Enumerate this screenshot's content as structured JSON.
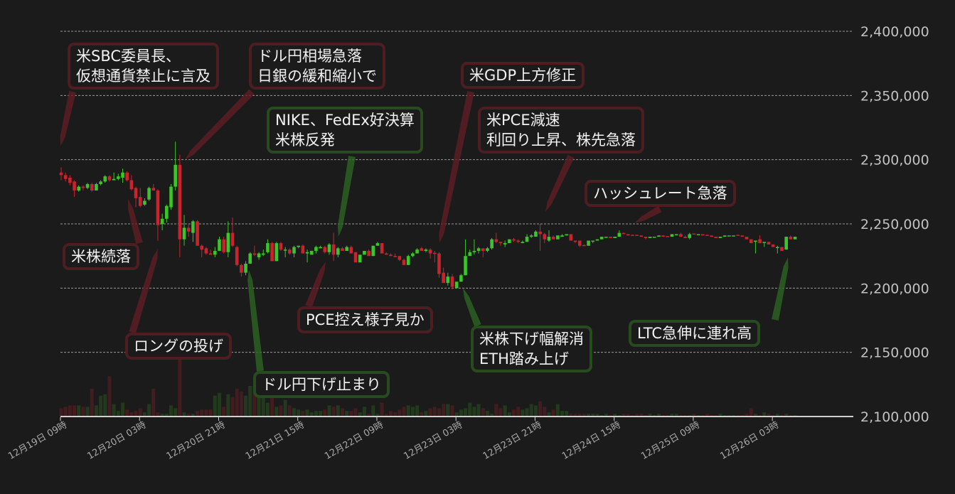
{
  "chart_data": {
    "type": "candlestick",
    "title": "",
    "xlabel": "",
    "ylabel": "",
    "interval": "1 hour",
    "ylim": [
      2100000,
      2400000
    ],
    "grid": true,
    "colors": {
      "up": "#3cc42a",
      "down": "#c9232d",
      "background": "#1b1b1b",
      "annotation_negative": "#4e1d21",
      "annotation_positive": "#274b1f"
    },
    "y_ticks": [
      "2,400,000",
      "2,350,000",
      "2,300,000",
      "2,250,000",
      "2,200,000",
      "2,150,000",
      "2,100,000"
    ],
    "y_tick_values": [
      2400000,
      2350000,
      2300000,
      2250000,
      2200000,
      2150000,
      2100000
    ],
    "x_ticks": [
      "12月19日 09時",
      "12月20日 03時",
      "12月20日 21時",
      "12月21日 15時",
      "12月22日 09時",
      "12月23日 03時",
      "12月23日 21時",
      "12月24日 15時",
      "12月25日 09時",
      "12月26日 03時"
    ],
    "x_tick_candle_index": [
      0,
      18,
      36,
      54,
      72,
      90,
      108,
      126,
      144,
      162
    ],
    "candles_ohlc": [
      [
        2290000,
        2294000,
        2284000,
        2288000
      ],
      [
        2288000,
        2290000,
        2283000,
        2285000
      ],
      [
        2286000,
        2288000,
        2280000,
        2282000
      ],
      [
        2283000,
        2284000,
        2271000,
        2276000
      ],
      [
        2276000,
        2280000,
        2275000,
        2279000
      ],
      [
        2279000,
        2280000,
        2276000,
        2278000
      ],
      [
        2278000,
        2282000,
        2277000,
        2281000
      ],
      [
        2281000,
        2282000,
        2275000,
        2276000
      ],
      [
        2276000,
        2282000,
        2276000,
        2281000
      ],
      [
        2281000,
        2284000,
        2280000,
        2283000
      ],
      [
        2283000,
        2288000,
        2282000,
        2287000
      ],
      [
        2287000,
        2288000,
        2283000,
        2284000
      ],
      [
        2284000,
        2290000,
        2284000,
        2285000
      ],
      [
        2285000,
        2289000,
        2284000,
        2287000
      ],
      [
        2286000,
        2293000,
        2282000,
        2290000
      ],
      [
        2290000,
        2291000,
        2283000,
        2284000
      ],
      [
        2284000,
        2288000,
        2276000,
        2277000
      ],
      [
        2278000,
        2279000,
        2263000,
        2270000
      ],
      [
        2271000,
        2278000,
        2263000,
        2264000
      ],
      [
        2265000,
        2270000,
        2264000,
        2268000
      ],
      [
        2269000,
        2279000,
        2268000,
        2278000
      ],
      [
        2278000,
        2281000,
        2276000,
        2276000
      ],
      [
        2276000,
        2277000,
        2237000,
        2249000
      ],
      [
        2250000,
        2258000,
        2245000,
        2254000
      ],
      [
        2254000,
        2265000,
        2251000,
        2264000
      ],
      [
        2263000,
        2281000,
        2261000,
        2279000
      ],
      [
        2279000,
        2314000,
        2276000,
        2296000
      ],
      [
        2296000,
        2304000,
        2224000,
        2238000
      ],
      [
        2238000,
        2257000,
        2233000,
        2247000
      ],
      [
        2247000,
        2250000,
        2240000,
        2244000
      ],
      [
        2243000,
        2253000,
        2236000,
        2252000
      ],
      [
        2252000,
        2253000,
        2233000,
        2233000
      ],
      [
        2233000,
        2234000,
        2224000,
        2230000
      ],
      [
        2231000,
        2232000,
        2226000,
        2227000
      ],
      [
        2227000,
        2230000,
        2226000,
        2226000
      ],
      [
        2226000,
        2232000,
        2224000,
        2229000
      ],
      [
        2229000,
        2240000,
        2229000,
        2238000
      ],
      [
        2238000,
        2240000,
        2227000,
        2228000
      ],
      [
        2228000,
        2252000,
        2224000,
        2243000
      ],
      [
        2243000,
        2255000,
        2232000,
        2233000
      ],
      [
        2232000,
        2233000,
        2217000,
        2218000
      ],
      [
        2218000,
        2219000,
        2209000,
        2212000
      ],
      [
        2212000,
        2221000,
        2210000,
        2219000
      ],
      [
        2219000,
        2228000,
        2219000,
        2227000
      ],
      [
        2227000,
        2233000,
        2225000,
        2226000
      ],
      [
        2224000,
        2228000,
        2222000,
        2227000
      ],
      [
        2226000,
        2230000,
        2225000,
        2227000
      ],
      [
        2228000,
        2238000,
        2227000,
        2235000
      ],
      [
        2235000,
        2236000,
        2221000,
        2221000
      ],
      [
        2221000,
        2236000,
        2221000,
        2235000
      ],
      [
        2235000,
        2236000,
        2229000,
        2230000
      ],
      [
        2230000,
        2232000,
        2224000,
        2230000
      ],
      [
        2230000,
        2231000,
        2226000,
        2227000
      ],
      [
        2227000,
        2233000,
        2224000,
        2232000
      ],
      [
        2232000,
        2233000,
        2231000,
        2233000
      ],
      [
        2233000,
        2234000,
        2227000,
        2227000
      ],
      [
        2227000,
        2230000,
        2220000,
        2228000
      ],
      [
        2226000,
        2229000,
        2226000,
        2229000
      ],
      [
        2229000,
        2233000,
        2227000,
        2232000
      ],
      [
        2231000,
        2233000,
        2231000,
        2232000
      ],
      [
        2232000,
        2233000,
        2227000,
        2228000
      ],
      [
        2228000,
        2235000,
        2226000,
        2234000
      ],
      [
        2234000,
        2243000,
        2221000,
        2226000
      ],
      [
        2226000,
        2232000,
        2224000,
        2231000
      ],
      [
        2231000,
        2232000,
        2229000,
        2229000
      ],
      [
        2229000,
        2233000,
        2229000,
        2232000
      ],
      [
        2232000,
        2233000,
        2227000,
        2227000
      ],
      [
        2228000,
        2228000,
        2220000,
        2220000
      ],
      [
        2220000,
        2226000,
        2220000,
        2226000
      ],
      [
        2226000,
        2229000,
        2226000,
        2229000
      ],
      [
        2229000,
        2230000,
        2225000,
        2225000
      ],
      [
        2225000,
        2233000,
        2225000,
        2233000
      ],
      [
        2233000,
        2236000,
        2233000,
        2235000
      ],
      [
        2235000,
        2235000,
        2227000,
        2227000
      ],
      [
        2227000,
        2228000,
        2226000,
        2226000
      ],
      [
        2226000,
        2227000,
        2225000,
        2225000
      ],
      [
        2225000,
        2227000,
        2224000,
        2224500
      ],
      [
        2225000,
        2225000,
        2221000,
        2222000
      ],
      [
        2222000,
        2223000,
        2218000,
        2218000
      ],
      [
        2218000,
        2226000,
        2218000,
        2225000
      ],
      [
        2225000,
        2228000,
        2224000,
        2227000
      ],
      [
        2227000,
        2231000,
        2227000,
        2230000
      ],
      [
        2231000,
        2232000,
        2229000,
        2229000
      ],
      [
        2229000,
        2231000,
        2228000,
        2230000
      ],
      [
        2230000,
        2231000,
        2223000,
        2227000
      ],
      [
        2227500,
        2229000,
        2220000,
        2227000
      ],
      [
        2227000,
        2228000,
        2208000,
        2211000
      ],
      [
        2212000,
        2216000,
        2204000,
        2204000
      ],
      [
        2204000,
        2212000,
        2202000,
        2209000
      ],
      [
        2209000,
        2211000,
        2199000,
        2201000
      ],
      [
        2200000,
        2205000,
        2200000,
        2205000
      ],
      [
        2205000,
        2211000,
        2205000,
        2210000
      ],
      [
        2210000,
        2238000,
        2210000,
        2225000
      ],
      [
        2225000,
        2230000,
        2225000,
        2228000
      ],
      [
        2228000,
        2238000,
        2226000,
        2229000
      ],
      [
        2229000,
        2232000,
        2227000,
        2231000
      ],
      [
        2231000,
        2231000,
        2224000,
        2229000
      ],
      [
        2229000,
        2232000,
        2228000,
        2231000
      ],
      [
        2231000,
        2239000,
        2230000,
        2238000
      ],
      [
        2238000,
        2243000,
        2235000,
        2236000
      ],
      [
        2236000,
        2236000,
        2233000,
        2235000
      ],
      [
        2234000,
        2237000,
        2232000,
        2235000
      ],
      [
        2235000,
        2238000,
        2235000,
        2238000
      ],
      [
        2238000,
        2239000,
        2236000,
        2237000
      ],
      [
        2237000,
        2238000,
        2235000,
        2236000
      ],
      [
        2235000,
        2237000,
        2235000,
        2236000
      ],
      [
        2236000,
        2242000,
        2236000,
        2240000
      ],
      [
        2240000,
        2242000,
        2239000,
        2241000
      ],
      [
        2240000,
        2245000,
        2240000,
        2244000
      ],
      [
        2244000,
        2250000,
        2229000,
        2242000
      ],
      [
        2242000,
        2243000,
        2235000,
        2238000
      ],
      [
        2237000,
        2245000,
        2236000,
        2240000
      ],
      [
        2240000,
        2241000,
        2238000,
        2238000
      ],
      [
        2238000,
        2241000,
        2238000,
        2241000
      ],
      [
        2240000,
        2242000,
        2240000,
        2241000
      ],
      [
        2241000,
        2242000,
        2241000,
        2242000
      ],
      [
        2242000,
        2242000,
        2237000,
        2237000
      ],
      [
        2237000,
        2237000,
        2235000,
        2236000
      ],
      [
        2237000,
        2237000,
        2232000,
        2233000
      ],
      [
        2233500,
        2234000,
        2233000,
        2233000
      ],
      [
        2233000,
        2237000,
        2233000,
        2237000
      ],
      [
        2236500,
        2237000,
        2235000,
        2237000
      ],
      [
        2237000,
        2238000,
        2237000,
        2238000
      ],
      [
        2238000,
        2240000,
        2238000,
        2240000
      ],
      [
        2239500,
        2240000,
        2240000,
        2240000
      ],
      [
        2240000,
        2240000,
        2239000,
        2239000
      ],
      [
        2239000,
        2240000,
        2239000,
        2240000
      ],
      [
        2240000,
        2245000,
        2240000,
        2243000
      ],
      [
        2243000,
        2243000,
        2242000,
        2242000
      ],
      [
        2242000,
        2242000,
        2241000,
        2241000
      ],
      [
        2241500,
        2241500,
        2241000,
        2241000
      ],
      [
        2241500,
        2241500,
        2241000,
        2241000
      ],
      [
        2241000,
        2241000,
        2240000,
        2240000
      ],
      [
        2240000,
        2240000,
        2238000,
        2239000
      ],
      [
        2239000,
        2240000,
        2239000,
        2240000
      ],
      [
        2239500,
        2240000,
        2240000,
        2240000
      ],
      [
        2240000,
        2241000,
        2240000,
        2241000
      ],
      [
        2241000,
        2241000,
        2240000,
        2240000
      ],
      [
        2240500,
        2240500,
        2240000,
        2240000
      ],
      [
        2240000,
        2242000,
        2240000,
        2242000
      ],
      [
        2241500,
        2242000,
        2241000,
        2242000
      ],
      [
        2242000,
        2243000,
        2240000,
        2240000
      ],
      [
        2240000,
        2241000,
        2239000,
        2239000
      ],
      [
        2239000,
        2243000,
        2238000,
        2242000
      ],
      [
        2242500,
        2242500,
        2242000,
        2242000
      ],
      [
        2241500,
        2242000,
        2242000,
        2242000
      ],
      [
        2242000,
        2242000,
        2241000,
        2241000
      ],
      [
        2241500,
        2241500,
        2241000,
        2241000
      ],
      [
        2241000,
        2241000,
        2240000,
        2240000
      ],
      [
        2240000,
        2240000,
        2239000,
        2239000
      ],
      [
        2239000,
        2240000,
        2239000,
        2240000
      ],
      [
        2240000,
        2241000,
        2240000,
        2241000
      ],
      [
        2240500,
        2241000,
        2241000,
        2241000
      ],
      [
        2240500,
        2241000,
        2241000,
        2241000
      ],
      [
        2241500,
        2241500,
        2241000,
        2241000
      ],
      [
        2241000,
        2241000,
        2240000,
        2240000
      ],
      [
        2240000,
        2240000,
        2238000,
        2238000
      ],
      [
        2238000,
        2238000,
        2235000,
        2235000
      ],
      [
        2236000,
        2237000,
        2227000,
        2237000
      ],
      [
        2238000,
        2241000,
        2235000,
        2235000
      ],
      [
        2235500,
        2236000,
        2232000,
        2236000
      ],
      [
        2236000,
        2236000,
        2234000,
        2234000
      ],
      [
        2234000,
        2234000,
        2232000,
        2232000
      ],
      [
        2231500,
        2233000,
        2227000,
        2232000
      ],
      [
        2232000,
        2232000,
        2229000,
        2229000
      ],
      [
        2230000,
        2240000,
        2230000,
        2240000
      ],
      [
        2240000,
        2241000,
        2238000,
        2238000
      ],
      [
        2238000,
        2240000,
        2238000,
        2240000
      ]
    ],
    "volumes": [
      12,
      14,
      16,
      16,
      16,
      14,
      14,
      40,
      16,
      30,
      32,
      58,
      18,
      8,
      20,
      10,
      6,
      8,
      12,
      6,
      18,
      40,
      6,
      4,
      4,
      16,
      12,
      90,
      6,
      4,
      4,
      8,
      10,
      10,
      10,
      30,
      34,
      14,
      32,
      28,
      40,
      36,
      30,
      44,
      45,
      38,
      50,
      20,
      48,
      14,
      16,
      24,
      16,
      12,
      10,
      8,
      10,
      6,
      8,
      8,
      10,
      16,
      14,
      16,
      12,
      8,
      8,
      12,
      6,
      14,
      4,
      16,
      4,
      20,
      4,
      8,
      6,
      10,
      14,
      16,
      14,
      16,
      6,
      8,
      12,
      14,
      12,
      18,
      18,
      16,
      6,
      10,
      12,
      20,
      14,
      18,
      12,
      8,
      4,
      18,
      12,
      16,
      6,
      10,
      14,
      10,
      12,
      18,
      16,
      22,
      14,
      6,
      10,
      18,
      8,
      8,
      4,
      4,
      4,
      4,
      4,
      4,
      4,
      2,
      4,
      2,
      4,
      2,
      4,
      4,
      2,
      4,
      4,
      2,
      4,
      2,
      4,
      2,
      2,
      4,
      4,
      2,
      2,
      2,
      4,
      2,
      2,
      4,
      2,
      2,
      4,
      2,
      2,
      2,
      2,
      2,
      4,
      12,
      4,
      2,
      6,
      4,
      2,
      4,
      2,
      4,
      2,
      2
    ],
    "annotations": [
      {
        "lines": [
          "米SBC委員長、",
          "仮想通貨禁止に言及"
        ],
        "tone": "negative"
      },
      {
        "lines": [
          "ドル円相場急落",
          "日銀の緩和縮小で"
        ],
        "tone": "negative"
      },
      {
        "lines": [
          "NIKE、FedEx好決算",
          "米株反発"
        ],
        "tone": "positive"
      },
      {
        "lines": [
          "米GDP上方修正"
        ],
        "tone": "negative"
      },
      {
        "lines": [
          "米PCE減速",
          "利回り上昇、株先急落"
        ],
        "tone": "negative"
      },
      {
        "lines": [
          "ハッシュレート急落"
        ],
        "tone": "negative"
      },
      {
        "lines": [
          "米株続落"
        ],
        "tone": "negative"
      },
      {
        "lines": [
          "ロングの投げ"
        ],
        "tone": "negative"
      },
      {
        "lines": [
          "ドル円下げ止まり"
        ],
        "tone": "positive"
      },
      {
        "lines": [
          "PCE控え様子見か"
        ],
        "tone": "negative"
      },
      {
        "lines": [
          "米株下げ幅解消",
          "ETH踏み上げ"
        ],
        "tone": "positive"
      },
      {
        "lines": [
          "LTC急伸に連れ高"
        ],
        "tone": "positive"
      }
    ]
  }
}
